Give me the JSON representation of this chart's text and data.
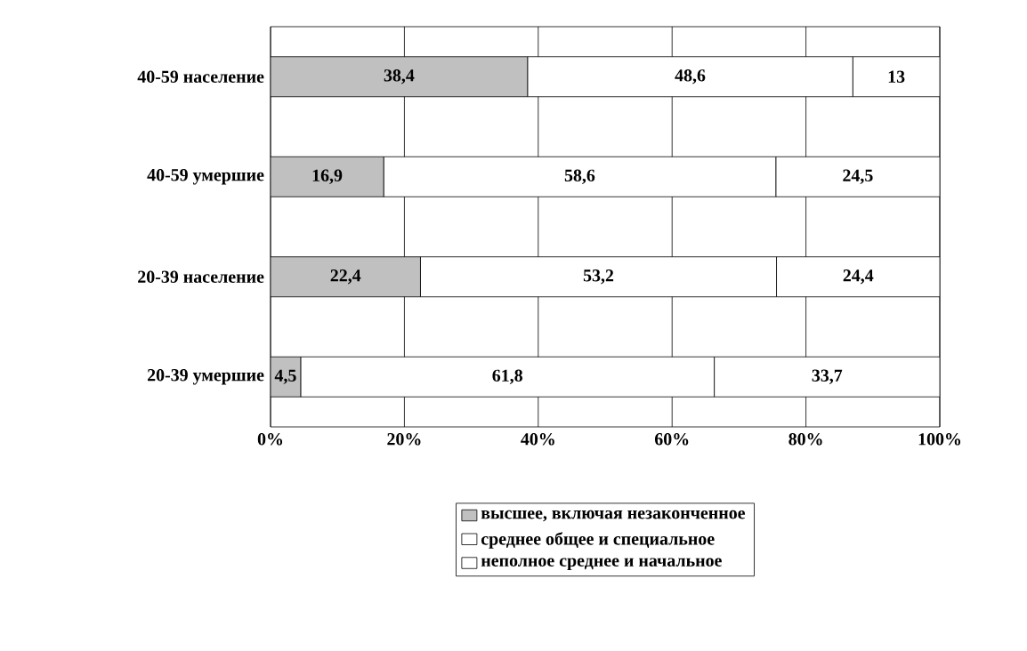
{
  "chart_data": {
    "type": "bar",
    "orientation": "horizontal",
    "stacked": true,
    "categories": [
      "40-59 население",
      "40-59 умершие",
      "20-39 население",
      "20-39 умершие"
    ],
    "series": [
      {
        "name": "высшее, включая незаконченное",
        "color": "#c0c0c0",
        "values": [
          38.4,
          16.9,
          22.4,
          4.5
        ],
        "value_labels": [
          "38,4",
          "16,9",
          "22,4",
          "4,5"
        ]
      },
      {
        "name": "среднее общее и специальное",
        "color": "#ffffff",
        "values": [
          48.6,
          58.6,
          53.2,
          61.8
        ],
        "value_labels": [
          "48,6",
          "58,6",
          "53,2",
          "61,8"
        ]
      },
      {
        "name": "неполное среднее и начальное",
        "color": "#ffffff",
        "values": [
          13,
          24.5,
          24.4,
          33.7
        ],
        "value_labels": [
          "13",
          "24,5",
          "24,4",
          "33,7"
        ]
      }
    ],
    "xlim": [
      0,
      100
    ],
    "xticks": [
      {
        "value": 0,
        "label": "0%"
      },
      {
        "value": 20,
        "label": "20%"
      },
      {
        "value": 40,
        "label": "40%"
      },
      {
        "value": 60,
        "label": "60%"
      },
      {
        "value": 80,
        "label": "80%"
      },
      {
        "value": 100,
        "label": "100%"
      }
    ],
    "grid": "x",
    "legend": "bottom"
  }
}
